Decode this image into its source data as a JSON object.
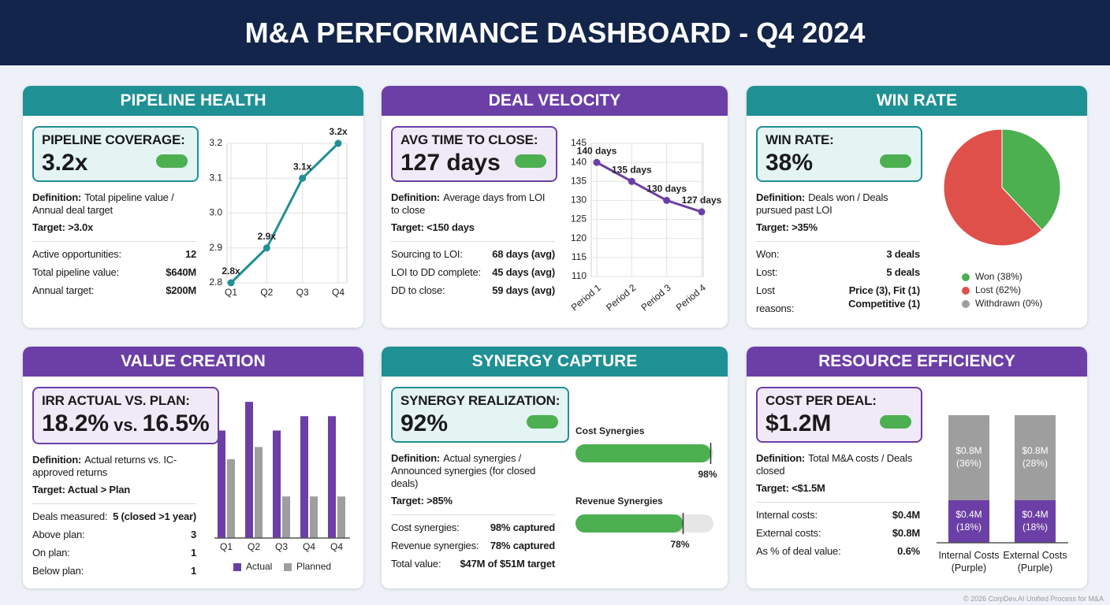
{
  "title": "M&A PERFORMANCE DASHBOARD - Q4 2024",
  "footer": "© 2026 CorpDev.AI Unified Process for M&A",
  "panels": [
    {
      "header": "PIPELINE HEALTH",
      "color": "#1f9093",
      "light_color": "#e3f4f3",
      "kpi_label": "PIPELINE COVERAGE:",
      "kpi_value": "3.2x",
      "definition_label": "Definition:",
      "definition": "Total pipeline value / Annual deal target",
      "target": "Target: >3.0x",
      "rows": [
        [
          "Active opportunities:",
          "12"
        ],
        [
          "Total pipeline value:",
          "$640M"
        ],
        [
          "Annual target:",
          "$200M"
        ]
      ]
    },
    {
      "header": "DEAL VELOCITY",
      "color": "#6b3fa6",
      "light_color": "#f0eaf8",
      "kpi_label": "AVG TIME TO CLOSE:",
      "kpi_value": "127 days",
      "definition_label": "Definition:",
      "definition": "Average days from LOI to close",
      "target": "Target: <150 days",
      "rows": [
        [
          "Sourcing to LOI:",
          "68 days (avg)"
        ],
        [
          "LOI to DD complete:",
          "45 days (avg)"
        ],
        [
          "DD to close:",
          "59 days (avg)"
        ]
      ]
    },
    {
      "header": "WIN RATE",
      "color": "#1f9093",
      "light_color": "#e3f4f3",
      "kpi_label": "WIN RATE:",
      "kpi_value": "38%",
      "definition_label": "Definition:",
      "definition": "Deals won / Deals pursued past LOI",
      "target": "Target: >35%",
      "rows": [
        [
          "Won:",
          "3 deals"
        ],
        [
          "Lost:",
          "5 deals"
        ],
        [
          "Lost reasons:",
          "Price (3), Fit (1) Competitive (1)"
        ]
      ]
    },
    {
      "header": "VALUE CREATION",
      "color": "#6b3fa6",
      "light_color": "#f0eaf8",
      "kpi_label": "IRR ACTUAL VS. PLAN:",
      "kpi_value": "18.2%",
      "kpi_vs": "vs.",
      "kpi_value2": "16.5%",
      "definition_label": "Definition:",
      "definition": "Actual returns vs. IC-approved returns",
      "target": "Target: Actual > Plan",
      "rows": [
        [
          "Deals measured:",
          "5 (closed >1 year)"
        ],
        [
          "Above plan:",
          "3"
        ],
        [
          "On plan:",
          "1"
        ],
        [
          "Below plan:",
          "1"
        ]
      ]
    },
    {
      "header": "SYNERGY CAPTURE",
      "color": "#1f9093",
      "light_color": "#e3f4f3",
      "kpi_label": "SYNERGY REALIZATION:",
      "kpi_value": "92%",
      "definition_label": "Definition:",
      "definition": "Actual synergies / Announced synergies (for closed deals)",
      "target": "Target: >85%",
      "rows": [
        [
          "Cost synergies:",
          "98% captured"
        ],
        [
          "Revenue synergies:",
          "78% captured"
        ],
        [
          "Total value:",
          "$47M of $51M target"
        ]
      ]
    },
    {
      "header": "RESOURCE EFFICIENCY",
      "color": "#6b3fa6",
      "light_color": "#f0eaf8",
      "kpi_label": "COST PER DEAL:",
      "kpi_value": "$1.2M",
      "definition_label": "Definition:",
      "definition": "Total M&A costs / Deals closed",
      "target": "Target: <$1.5M",
      "rows": [
        [
          "Internal costs:",
          "$0.4M"
        ],
        [
          "External costs:",
          "$0.8M"
        ],
        [
          "As % of deal value:",
          "0.6%"
        ]
      ]
    }
  ],
  "chart_data": [
    {
      "type": "line",
      "categories": [
        "Q1",
        "Q2",
        "Q3",
        "Q4"
      ],
      "values": [
        2.8,
        2.9,
        3.1,
        3.2
      ],
      "value_labels": [
        "2.8x",
        "2.9x",
        "3.1x",
        "3.2x"
      ],
      "color": "#1f9093",
      "ylim": [
        2.8,
        3.2
      ],
      "yticks": [
        2.8,
        2.9,
        {
          "value": 3,
          "label": "3.0"
        },
        3.1,
        3.2
      ],
      "grid": true
    },
    {
      "type": "line",
      "categories": [
        "Period 1",
        "Period 2",
        "Period 3",
        "Period 4"
      ],
      "values": [
        140,
        135,
        130,
        127
      ],
      "value_labels": [
        "140 days",
        "135 days",
        "130 days",
        "127 days"
      ],
      "color": "#6b3fa6",
      "ylim": [
        110,
        145
      ],
      "yticks": [
        110,
        115,
        120,
        125,
        130,
        135,
        140,
        145
      ],
      "grid": true
    },
    {
      "type": "pie",
      "categories": [
        "Won (38%)",
        "Lost (62%)",
        "Withdrawn (0%)"
      ],
      "values": [
        38,
        62,
        0
      ],
      "colors": [
        "#4caf50",
        "#e0504a",
        "#9e9e9e"
      ]
    },
    {
      "type": "bar",
      "categories": [
        "Q1",
        "Q2",
        "Q3",
        "Q4",
        "Q4"
      ],
      "series": [
        {
          "name": "Actual",
          "color": "#6b3fa6",
          "values": [
            15,
            19,
            15,
            17,
            17
          ]
        },
        {
          "name": "Planned",
          "color": "#9e9e9e",
          "values": [
            11,
            12.7,
            5.8,
            5.8,
            5.8
          ]
        }
      ],
      "ylim": [
        0,
        20
      ]
    },
    {
      "type": "hbar",
      "categories": [
        "Cost Synergies",
        "Revenue Synergies"
      ],
      "values": [
        98,
        78
      ],
      "value_labels": [
        "98%",
        "78%"
      ],
      "color": "#4caf50",
      "xlim": [
        0,
        100
      ]
    },
    {
      "type": "stacked_bar",
      "categories": [
        "Internal Costs (Purple)",
        "External Costs (Purple)"
      ],
      "series": [
        {
          "color": "#6b3fa6",
          "values": [
            0.4,
            0.4
          ],
          "value_labels": [
            "$0.4M",
            "$0.4M"
          ],
          "share_labels": [
            "(18%)",
            "(18%)"
          ]
        },
        {
          "color": "#9e9e9e",
          "values": [
            0.8,
            0.8
          ],
          "value_labels": [
            "$0.8M",
            "$0.8M"
          ],
          "share_labels": [
            "(36%)",
            "(28%)"
          ]
        }
      ],
      "ylim": [
        0,
        1.2
      ]
    }
  ]
}
